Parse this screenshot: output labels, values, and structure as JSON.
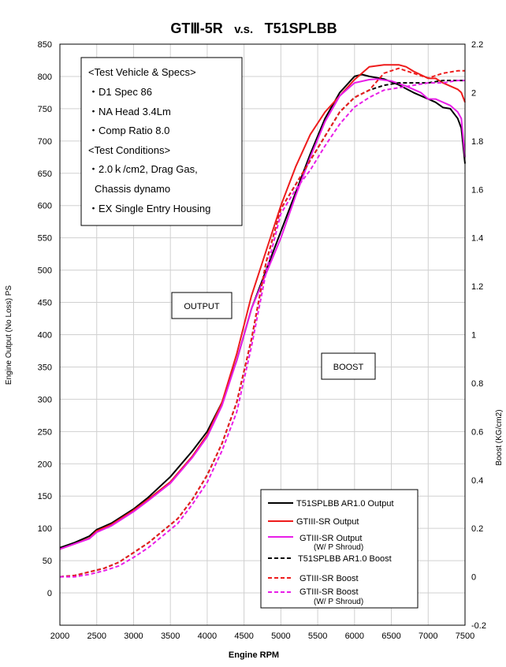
{
  "chart_data": {
    "type": "line",
    "title_main": "GTⅢ-5R",
    "title_vs": "v.s.",
    "title_rival": "T51SPLBB",
    "xlabel": "Engine RPM",
    "ylabel_left": "Engine Output (No Loss) PS",
    "ylabel_right": "Boost (KG/cm2)",
    "x_ticks": [
      "2000",
      "2500",
      "3000",
      "3500",
      "4000",
      "4500",
      "5000",
      "5500",
      "6000",
      "6500",
      "7000",
      "7500"
    ],
    "y_left_ticks": [
      "0",
      "50",
      "100",
      "150",
      "200",
      "250",
      "300",
      "350",
      "400",
      "450",
      "500",
      "550",
      "600",
      "650",
      "700",
      "750",
      "800",
      "850"
    ],
    "y_right_ticks": [
      "-0.2",
      "0",
      "0.2",
      "0.4",
      "0.6",
      "0.8",
      "1",
      "1.2",
      "1.4",
      "1.6",
      "1.8",
      "2",
      "2.2"
    ],
    "xlim": [
      2000,
      7500
    ],
    "ylim_left": [
      -50,
      850
    ],
    "ylim_right": [
      -0.2,
      2.2
    ],
    "grid": true,
    "info_box": {
      "lines": [
        "<Test Vehicle & Specs>",
        "・D1 Spec 86",
        "・NA Head 3.4Lm",
        "・Comp Ratio 8.0",
        "<Test Conditions>",
        "・2.0ｋ/cm2, Drag Gas,",
        "Chassis dynamo",
        "・EX Single Entry Housing"
      ]
    },
    "annotations": {
      "output": "OUTPUT",
      "boost": "BOOST"
    },
    "legend": {
      "placement": "bottom-right",
      "entries": [
        {
          "label": "T51SPLBB AR1.0 Output",
          "sub": "",
          "color": "#000000",
          "dash": false
        },
        {
          "label": "GTIII-SR Output",
          "sub": "",
          "color": "#ee1c1c",
          "dash": false
        },
        {
          "label": "GTIII-SR Output",
          "sub": "(W/ P Shroud)",
          "color": "#e81ee8",
          "dash": false
        },
        {
          "label": "T51SPLBB AR1.0 Boost",
          "sub": "",
          "color": "#000000",
          "dash": true
        },
        {
          "label": "GTIII-SR Boost",
          "sub": "",
          "color": "#ee1c1c",
          "dash": true
        },
        {
          "label": "GTIII-SR Boost",
          "sub": "(W/ P Shroud)",
          "color": "#e81ee8",
          "dash": true
        }
      ]
    },
    "series": [
      {
        "name": "T51SPLBB AR1.0 Output",
        "axis": "left",
        "color": "#000000",
        "dash": false,
        "x": [
          2000,
          2200,
          2400,
          2500,
          2700,
          3000,
          3200,
          3500,
          3800,
          4000,
          4200,
          4400,
          4600,
          4800,
          5000,
          5200,
          5400,
          5600,
          5800,
          6000,
          6100,
          6200,
          6400,
          6600,
          6800,
          7000,
          7100,
          7200,
          7300,
          7400,
          7450,
          7500
        ],
        "y": [
          70,
          78,
          88,
          98,
          108,
          130,
          148,
          180,
          220,
          250,
          295,
          360,
          440,
          500,
          560,
          620,
          680,
          735,
          775,
          800,
          803,
          800,
          796,
          787,
          775,
          765,
          760,
          752,
          750,
          735,
          720,
          665
        ]
      },
      {
        "name": "GTIII-SR Output",
        "axis": "left",
        "color": "#ee1c1c",
        "dash": false,
        "x": [
          2000,
          2200,
          2400,
          2500,
          2700,
          3000,
          3200,
          3500,
          3800,
          4000,
          4200,
          4400,
          4600,
          4800,
          5000,
          5200,
          5400,
          5600,
          5800,
          6000,
          6200,
          6400,
          6600,
          6700,
          6800,
          7000,
          7100,
          7200,
          7300,
          7400,
          7450,
          7500
        ],
        "y": [
          68,
          76,
          85,
          96,
          106,
          128,
          145,
          172,
          212,
          245,
          295,
          370,
          460,
          530,
          600,
          660,
          710,
          745,
          770,
          795,
          815,
          818,
          818,
          815,
          808,
          797,
          797,
          790,
          785,
          780,
          775,
          760
        ]
      },
      {
        "name": "GTIII-SR Output (W/ P Shroud)",
        "axis": "left",
        "color": "#e81ee8",
        "dash": false,
        "x": [
          2000,
          2200,
          2400,
          2500,
          2700,
          3000,
          3200,
          3500,
          3800,
          4000,
          4200,
          4400,
          4600,
          4800,
          5000,
          5200,
          5400,
          5600,
          5800,
          6000,
          6200,
          6300,
          6500,
          6700,
          6900,
          7000,
          7100,
          7200,
          7300,
          7400,
          7450,
          7500
        ],
        "y": [
          68,
          76,
          84,
          94,
          104,
          126,
          143,
          170,
          210,
          242,
          290,
          360,
          440,
          495,
          550,
          615,
          675,
          730,
          770,
          790,
          795,
          796,
          793,
          785,
          775,
          765,
          765,
          760,
          755,
          745,
          735,
          675
        ]
      },
      {
        "name": "T51SPLBB AR1.0 Boost",
        "axis": "right",
        "color": "#000000",
        "dash": true,
        "x": [
          2000,
          2200,
          2400,
          2600,
          2800,
          3000,
          3200,
          3400,
          3600,
          3800,
          4000,
          4200,
          4400,
          4600,
          4800,
          5000,
          5200,
          5400,
          5600,
          5800,
          6000,
          6200,
          6400,
          6600,
          6800,
          7000,
          7200,
          7400,
          7500
        ],
        "y": [
          0,
          0.005,
          0.02,
          0.035,
          0.06,
          0.1,
          0.14,
          0.19,
          0.24,
          0.32,
          0.42,
          0.55,
          0.72,
          0.98,
          1.3,
          1.52,
          1.62,
          1.72,
          1.82,
          1.92,
          1.98,
          2.01,
          2.03,
          2.04,
          2.04,
          2.04,
          2.05,
          2.05,
          2.05
        ]
      },
      {
        "name": "GTIII-SR Boost",
        "axis": "right",
        "color": "#ee1c1c",
        "dash": true,
        "x": [
          2000,
          2200,
          2400,
          2600,
          2800,
          3000,
          3200,
          3400,
          3600,
          3800,
          4000,
          4200,
          4400,
          4600,
          4800,
          5000,
          5200,
          5400,
          5600,
          5800,
          6000,
          6200,
          6400,
          6600,
          6800,
          7000,
          7200,
          7400,
          7500
        ],
        "y": [
          0,
          0.005,
          0.02,
          0.035,
          0.06,
          0.1,
          0.14,
          0.19,
          0.24,
          0.32,
          0.42,
          0.55,
          0.72,
          0.98,
          1.3,
          1.52,
          1.62,
          1.72,
          1.82,
          1.92,
          1.98,
          2.01,
          2.08,
          2.1,
          2.08,
          2.06,
          2.08,
          2.09,
          2.09
        ]
      },
      {
        "name": "GTIII-SR Boost (W/ P Shroud)",
        "axis": "right",
        "color": "#e81ee8",
        "dash": true,
        "x": [
          2000,
          2200,
          2400,
          2600,
          2800,
          3000,
          3200,
          3400,
          3600,
          3800,
          4000,
          4200,
          4400,
          4600,
          4800,
          5000,
          5200,
          5400,
          5600,
          5800,
          6000,
          6200,
          6400,
          6600,
          6800,
          7000,
          7200,
          7400,
          7500
        ],
        "y": [
          0,
          0,
          0.01,
          0.025,
          0.045,
          0.08,
          0.12,
          0.17,
          0.22,
          0.3,
          0.39,
          0.52,
          0.68,
          0.95,
          1.26,
          1.5,
          1.6,
          1.68,
          1.78,
          1.87,
          1.94,
          1.98,
          2.01,
          2.02,
          2.03,
          2.04,
          2.04,
          2.05,
          2.05
        ]
      }
    ]
  }
}
